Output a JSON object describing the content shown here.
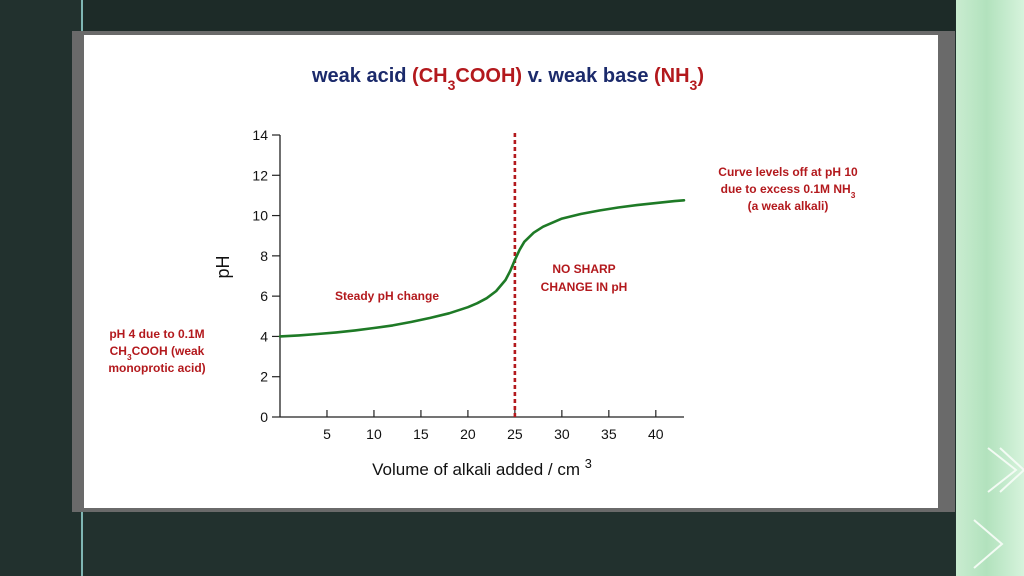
{
  "slide": {
    "title_parts": [
      {
        "text": "weak acid ",
        "color": "#1b2a6b"
      },
      {
        "text": "(CH",
        "color": "#b3191d"
      },
      {
        "text": "3",
        "color": "#b3191d",
        "sub": true
      },
      {
        "text": "COOH)",
        "color": "#b3191d"
      },
      {
        "text": " v. weak base ",
        "color": "#1b2a6b"
      },
      {
        "text": "(NH",
        "color": "#b3191d"
      },
      {
        "text": "3",
        "color": "#b3191d",
        "sub": true
      },
      {
        "text": ")",
        "color": "#b3191d"
      }
    ]
  },
  "chart_data": {
    "type": "line",
    "xlabel": "Volume of alkali added / cm",
    "xlabel_sup": "3",
    "ylabel": "pH",
    "xlim": [
      0,
      43
    ],
    "ylim": [
      0,
      14
    ],
    "x_ticks": [
      5,
      10,
      15,
      20,
      25,
      30,
      35,
      40
    ],
    "y_ticks": [
      0,
      2,
      4,
      6,
      8,
      10,
      12,
      14
    ],
    "grid": false,
    "line_color": "#1e7a26",
    "equivalence_line": {
      "x": 25,
      "color": "#b3191d",
      "style": "dotted"
    },
    "series": [
      {
        "x": [
          0,
          2,
          4,
          6,
          8,
          10,
          12,
          14,
          16,
          18,
          20,
          21,
          22,
          23,
          24,
          24.5,
          25,
          25.5,
          26,
          27,
          28,
          30,
          32,
          34,
          36,
          38,
          40,
          42,
          43
        ],
        "y": [
          4.0,
          4.05,
          4.12,
          4.2,
          4.3,
          4.42,
          4.55,
          4.72,
          4.92,
          5.15,
          5.45,
          5.65,
          5.9,
          6.25,
          6.8,
          7.25,
          7.8,
          8.3,
          8.7,
          9.15,
          9.45,
          9.85,
          10.08,
          10.25,
          10.4,
          10.52,
          10.62,
          10.72,
          10.76
        ]
      }
    ],
    "annotations": {
      "left_note": [
        {
          "text": "pH 4 due to 0.1M"
        },
        {
          "parts": [
            {
              "text": "CH"
            },
            {
              "text": "3",
              "sub": true
            },
            {
              "text": "COOH (weak"
            }
          ]
        },
        {
          "text": "monoprotic acid)"
        }
      ],
      "steady": "Steady pH change",
      "no_sharp": [
        "NO SHARP",
        "CHANGE IN pH"
      ],
      "levels_off": [
        {
          "text": "Curve levels off at pH 10"
        },
        {
          "parts": [
            {
              "text": "due to excess 0.1M NH"
            },
            {
              "text": "3",
              "sub": true
            }
          ]
        },
        {
          "text": "(a weak alkali)"
        }
      ]
    }
  }
}
